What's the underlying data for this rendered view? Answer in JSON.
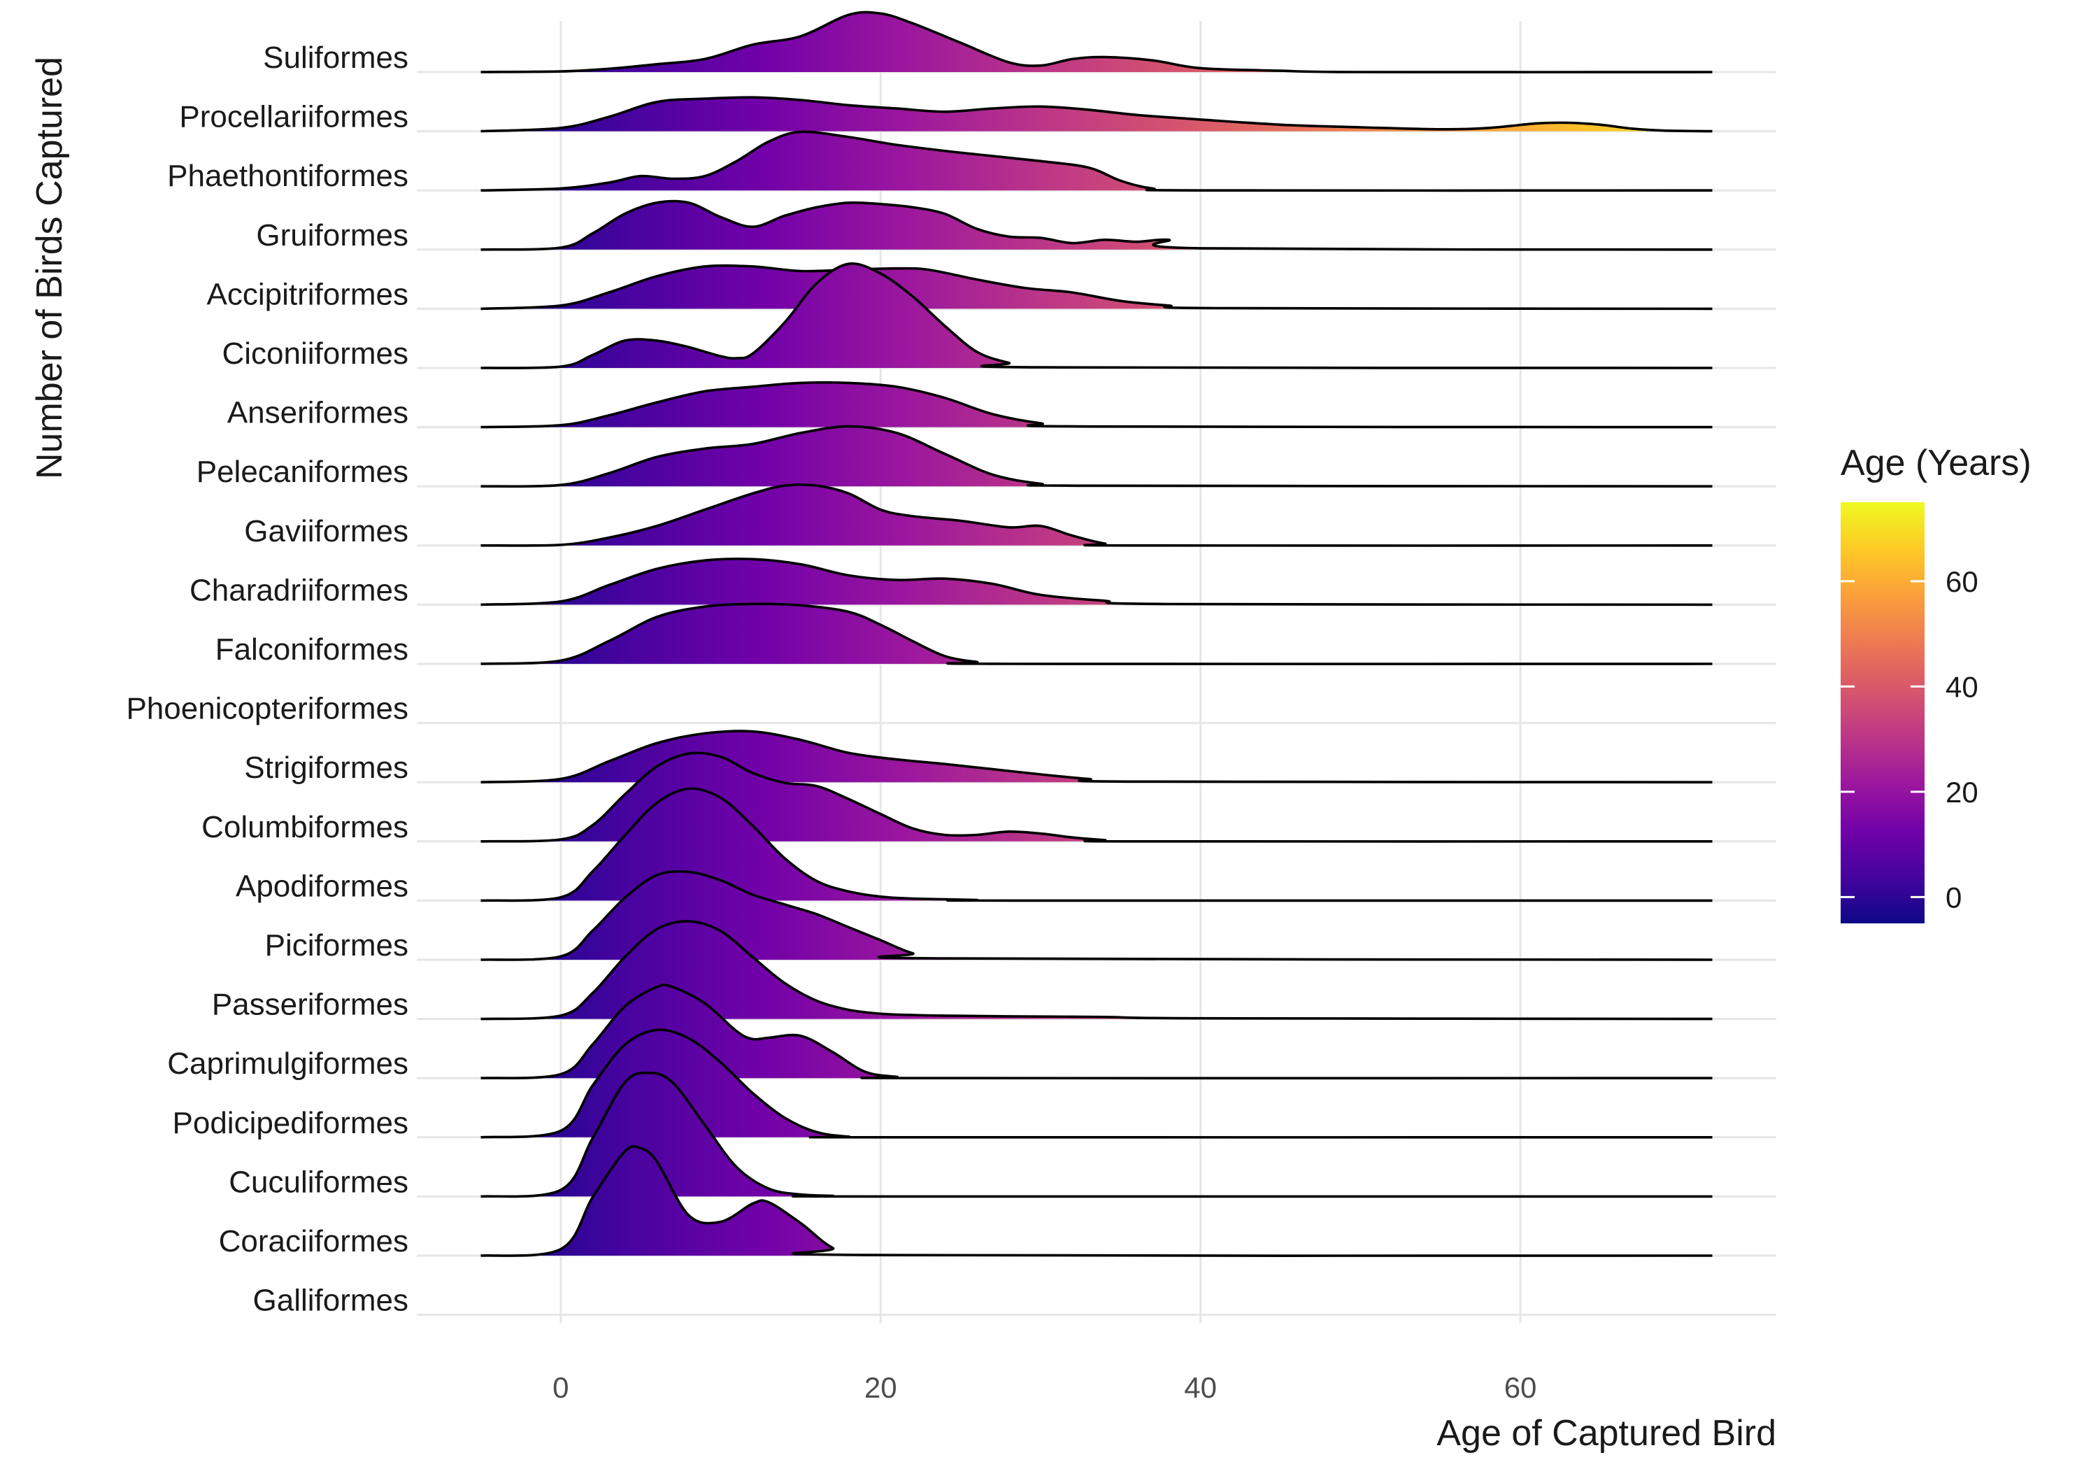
{
  "chart_data": {
    "type": "ridgeline",
    "title": "",
    "xlabel": "Age of Captured Bird",
    "ylabel": "Number of Birds Captured",
    "xlim": [
      -9,
      76
    ],
    "x_ticks": [
      0,
      20,
      40,
      60
    ],
    "density_range": [
      -5,
      72
    ],
    "grid": true,
    "legend": {
      "title": "Age (Years)",
      "placement": "right",
      "ticks": [
        0,
        20,
        40,
        60
      ],
      "range": [
        -5,
        75
      ],
      "colormap": "plasma"
    },
    "colors": {
      "plasma": [
        "#0d0887",
        "#46039f",
        "#7201a8",
        "#9c179e",
        "#bd3786",
        "#d8576b",
        "#ed7953",
        "#fb9f3a",
        "#fdca26",
        "#f0f921"
      ],
      "outline": "#000000",
      "grid": "#e6e6e6"
    },
    "categories": [
      "Suliformes",
      "Procellariiformes",
      "Phaethontiformes",
      "Gruiformes",
      "Accipitriformes",
      "Ciconiiformes",
      "Anseriformes",
      "Pelecaniformes",
      "Gaviiformes",
      "Charadriiformes",
      "Falconiformes",
      "Phoenicopteriformes",
      "Strigiformes",
      "Columbiformes",
      "Apodiformes",
      "Piciformes",
      "Passeriformes",
      "Caprimulgiformes",
      "Podicipediformes",
      "Cuculiformes",
      "Coraciiformes",
      "Galliformes"
    ],
    "series": [
      {
        "name": "Suliformes",
        "x": [
          -5,
          0,
          3,
          6,
          9,
          12,
          15,
          18,
          20,
          22,
          25,
          28,
          30,
          32,
          34,
          37,
          40,
          45,
          50,
          72
        ],
        "y": [
          0,
          0.01,
          0.05,
          0.12,
          0.2,
          0.42,
          0.55,
          0.88,
          0.9,
          0.75,
          0.45,
          0.15,
          0.1,
          0.2,
          0.23,
          0.18,
          0.06,
          0.02,
          0,
          0
        ]
      },
      {
        "name": "Procellariiformes",
        "x": [
          -5,
          0,
          3,
          6,
          9,
          12,
          15,
          18,
          21,
          24,
          27,
          30,
          33,
          36,
          40,
          45,
          50,
          55,
          58,
          61,
          63,
          65,
          67,
          69,
          72
        ],
        "y": [
          0,
          0.05,
          0.22,
          0.45,
          0.5,
          0.52,
          0.48,
          0.4,
          0.35,
          0.3,
          0.35,
          0.38,
          0.33,
          0.25,
          0.18,
          0.1,
          0.06,
          0.03,
          0.05,
          0.12,
          0.13,
          0.1,
          0.04,
          0.01,
          0
        ]
      },
      {
        "name": "Phaethontiformes",
        "x": [
          -5,
          0,
          3,
          5,
          7,
          9,
          11,
          13,
          15,
          18,
          21,
          25,
          30,
          33,
          35,
          37,
          40,
          72
        ],
        "y": [
          0,
          0.03,
          0.12,
          0.22,
          0.18,
          0.22,
          0.45,
          0.75,
          0.9,
          0.82,
          0.7,
          0.58,
          0.45,
          0.35,
          0.15,
          0.03,
          0,
          0
        ]
      },
      {
        "name": "Gruiformes",
        "x": [
          -5,
          0,
          2,
          4,
          6,
          8,
          10,
          12,
          14,
          16,
          18,
          20,
          22,
          24,
          26,
          28,
          30,
          32,
          34,
          36,
          38,
          40,
          72
        ],
        "y": [
          0,
          0.03,
          0.25,
          0.55,
          0.72,
          0.72,
          0.5,
          0.35,
          0.52,
          0.65,
          0.72,
          0.7,
          0.65,
          0.55,
          0.32,
          0.2,
          0.18,
          0.1,
          0.15,
          0.12,
          0.15,
          0.02,
          0
        ]
      },
      {
        "name": "Accipitriformes",
        "x": [
          -5,
          0,
          3,
          6,
          9,
          12,
          15,
          18,
          21,
          23,
          26,
          29,
          32,
          35,
          38,
          41,
          72
        ],
        "y": [
          0,
          0.05,
          0.25,
          0.5,
          0.65,
          0.65,
          0.58,
          0.6,
          0.62,
          0.6,
          0.45,
          0.32,
          0.25,
          0.12,
          0.05,
          0.01,
          0
        ]
      },
      {
        "name": "Ciconiiformes",
        "x": [
          -5,
          0,
          2,
          4,
          6,
          8,
          10,
          11,
          12,
          14,
          16,
          18,
          20,
          22,
          24,
          26,
          28,
          30,
          72
        ],
        "y": [
          0,
          0.02,
          0.2,
          0.42,
          0.42,
          0.32,
          0.18,
          0.15,
          0.22,
          0.7,
          1.3,
          1.6,
          1.45,
          1.1,
          0.65,
          0.25,
          0.08,
          0.01,
          0
        ]
      },
      {
        "name": "Anseriformes",
        "x": [
          -5,
          0,
          3,
          6,
          9,
          12,
          15,
          18,
          21,
          24,
          27,
          30,
          33,
          72
        ],
        "y": [
          0,
          0.03,
          0.18,
          0.38,
          0.55,
          0.62,
          0.68,
          0.68,
          0.62,
          0.45,
          0.2,
          0.06,
          0.01,
          0
        ]
      },
      {
        "name": "Pelecaniformes",
        "x": [
          -5,
          0,
          3,
          6,
          9,
          12,
          15,
          18,
          21,
          24,
          27,
          30,
          33,
          72
        ],
        "y": [
          0,
          0.02,
          0.2,
          0.45,
          0.58,
          0.65,
          0.82,
          0.92,
          0.82,
          0.5,
          0.18,
          0.04,
          0.01,
          0
        ]
      },
      {
        "name": "Gaviiformes",
        "x": [
          -5,
          0,
          3,
          6,
          9,
          12,
          14,
          16,
          18,
          20,
          22,
          25,
          28,
          30,
          32,
          34,
          36,
          72
        ],
        "y": [
          0,
          0.01,
          0.12,
          0.3,
          0.55,
          0.8,
          0.92,
          0.92,
          0.8,
          0.55,
          0.45,
          0.38,
          0.28,
          0.3,
          0.15,
          0.03,
          0,
          0
        ]
      },
      {
        "name": "Charadriiformes",
        "x": [
          -5,
          0,
          3,
          6,
          9,
          12,
          15,
          18,
          21,
          24,
          27,
          30,
          34,
          38,
          72
        ],
        "y": [
          0,
          0.05,
          0.3,
          0.55,
          0.68,
          0.7,
          0.62,
          0.45,
          0.38,
          0.4,
          0.32,
          0.15,
          0.06,
          0.01,
          0
        ]
      },
      {
        "name": "Falconiformes",
        "x": [
          -5,
          0,
          3,
          6,
          9,
          12,
          15,
          18,
          20,
          22,
          24,
          26,
          28,
          72
        ],
        "y": [
          0,
          0.05,
          0.35,
          0.72,
          0.88,
          0.92,
          0.9,
          0.8,
          0.6,
          0.35,
          0.12,
          0.03,
          0,
          0
        ]
      },
      {
        "name": "Phoenicopteriformes",
        "x": [],
        "y": []
      },
      {
        "name": "Strigiformes",
        "x": [
          -5,
          0,
          3,
          6,
          9,
          12,
          15,
          18,
          21,
          24,
          27,
          30,
          33,
          36,
          72
        ],
        "y": [
          0,
          0.05,
          0.32,
          0.6,
          0.75,
          0.78,
          0.65,
          0.45,
          0.35,
          0.28,
          0.2,
          0.12,
          0.05,
          0.01,
          0
        ]
      },
      {
        "name": "Columbiformes",
        "x": [
          -5,
          0,
          2,
          4,
          6,
          8,
          10,
          12,
          14,
          16,
          18,
          20,
          22,
          24,
          26,
          28,
          30,
          32,
          34,
          36,
          72
        ],
        "y": [
          0,
          0.03,
          0.25,
          0.72,
          1.15,
          1.35,
          1.3,
          1.05,
          0.9,
          0.85,
          0.65,
          0.42,
          0.2,
          0.1,
          0.1,
          0.15,
          0.12,
          0.06,
          0.02,
          0,
          0
        ]
      },
      {
        "name": "Apodiformes",
        "x": [
          -5,
          0,
          2,
          4,
          6,
          8,
          10,
          12,
          14,
          16,
          18,
          20,
          22,
          24,
          26,
          28,
          72
        ],
        "y": [
          0,
          0.05,
          0.45,
          1.0,
          1.5,
          1.72,
          1.58,
          1.15,
          0.65,
          0.3,
          0.14,
          0.06,
          0.03,
          0.02,
          0.01,
          0,
          0
        ]
      },
      {
        "name": "Piciformes",
        "x": [
          -5,
          0,
          2,
          4,
          6,
          8,
          10,
          12,
          14,
          16,
          18,
          20,
          22,
          24,
          72
        ],
        "y": [
          0,
          0.05,
          0.45,
          0.95,
          1.3,
          1.35,
          1.22,
          1.0,
          0.85,
          0.7,
          0.5,
          0.3,
          0.1,
          0.02,
          0
        ]
      },
      {
        "name": "Passeriformes",
        "x": [
          -5,
          0,
          2,
          4,
          6,
          8,
          10,
          12,
          14,
          16,
          18,
          20,
          22,
          24,
          28,
          34,
          40,
          72
        ],
        "y": [
          0,
          0.05,
          0.4,
          0.95,
          1.38,
          1.5,
          1.35,
          0.95,
          0.55,
          0.28,
          0.14,
          0.08,
          0.06,
          0.05,
          0.04,
          0.03,
          0.01,
          0
        ]
      },
      {
        "name": "Caprimulgiformes",
        "x": [
          -5,
          0,
          2,
          4,
          6,
          7,
          9,
          11,
          12,
          13,
          15,
          17,
          19,
          21,
          23,
          72
        ],
        "y": [
          0,
          0.06,
          0.52,
          1.1,
          1.4,
          1.4,
          1.15,
          0.72,
          0.6,
          0.62,
          0.65,
          0.4,
          0.1,
          0.02,
          0,
          0
        ]
      },
      {
        "name": "Podicipediformes",
        "x": [
          -5,
          0,
          2,
          4,
          6,
          8,
          10,
          12,
          14,
          16,
          18,
          20,
          72
        ],
        "y": [
          0,
          0.1,
          0.8,
          1.42,
          1.65,
          1.52,
          1.15,
          0.68,
          0.3,
          0.08,
          0.01,
          0,
          0
        ]
      },
      {
        "name": "Cuculiformes",
        "x": [
          -5,
          0,
          2,
          4,
          5.5,
          7,
          9,
          11,
          13,
          15,
          17,
          19,
          72
        ],
        "y": [
          0,
          0.1,
          0.9,
          1.75,
          1.9,
          1.75,
          1.1,
          0.45,
          0.12,
          0.03,
          0.01,
          0,
          0
        ]
      },
      {
        "name": "Coraciiformes",
        "x": [
          -5,
          0,
          2,
          4,
          5,
          6,
          8,
          10,
          12,
          13,
          15,
          17,
          19,
          72
        ],
        "y": [
          0,
          0.1,
          0.9,
          1.6,
          1.65,
          1.45,
          0.62,
          0.52,
          0.8,
          0.82,
          0.5,
          0.12,
          0.01,
          0
        ]
      },
      {
        "name": "Galliformes",
        "x": [],
        "y": []
      }
    ]
  }
}
